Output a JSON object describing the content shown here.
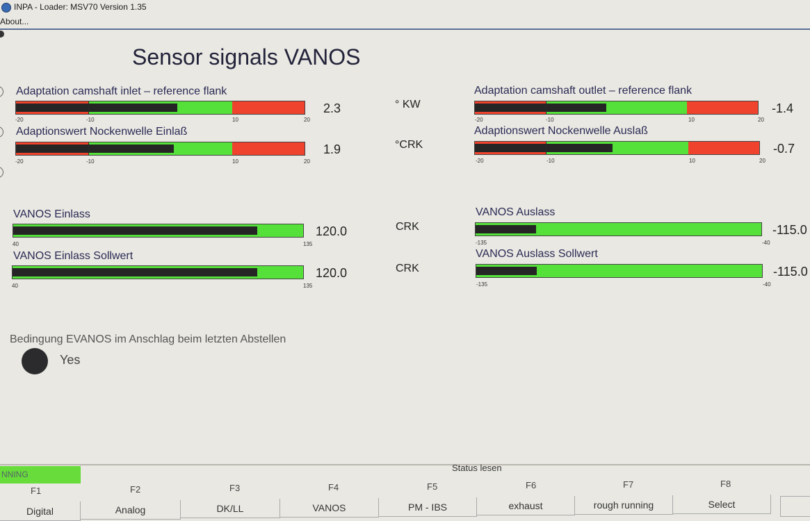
{
  "window": {
    "title": "INPA - Loader:  MSV70 Version 1.35"
  },
  "menu": {
    "about": "About..."
  },
  "page": {
    "title": "Sensor signals VANOS"
  },
  "left": {
    "adapt_inlet": {
      "label": "Adaptation camshaft inlet – reference flank",
      "value": "2.3",
      "fraction": 0.559,
      "scale": [
        "-20",
        "-10",
        "10",
        "20"
      ]
    },
    "adapt_inlet_de": {
      "label": "Adaptionswert Nockenwelle Einlaß",
      "value": "1.9",
      "fraction": 0.546,
      "scale": [
        "-20",
        "-10",
        "10",
        "20"
      ]
    },
    "vanos_inlet": {
      "label": "VANOS Einlass",
      "value": "120.0",
      "fraction": 0.842,
      "scale": [
        "40",
        "135"
      ]
    },
    "vanos_inlet_sp": {
      "label": "VANOS Einlass Sollwert",
      "value": "120.0",
      "fraction": 0.842,
      "scale": [
        "40",
        "135"
      ]
    }
  },
  "right": {
    "adapt_outlet": {
      "label": "Adaptation camshaft outlet – reference flank",
      "value": "-1.4",
      "fraction": 0.465,
      "scale": [
        "-20",
        "-10",
        "10",
        "20"
      ]
    },
    "adapt_outlet_de": {
      "label": "Adaptionswert Nockenwelle Auslaß",
      "value": "-0.7",
      "fraction": 0.483,
      "scale": [
        "-20",
        "-10",
        "10",
        "20"
      ]
    },
    "vanos_outlet": {
      "label": "VANOS Auslass",
      "value": "-115.0",
      "fraction": 0.211,
      "scale": [
        "-135",
        "-40"
      ]
    },
    "vanos_outlet_sp": {
      "label": "VANOS Auslass Sollwert",
      "value": "-115.0",
      "fraction": 0.211,
      "scale": [
        "-135",
        "-40"
      ]
    }
  },
  "units": {
    "u1": "° KW",
    "u2": "°CRK",
    "u3": "CRK",
    "u4": "CRK"
  },
  "condition": {
    "label": "Bedingung EVANOS im Anschlag beim letzten Abstellen",
    "value": "Yes"
  },
  "status": {
    "label": "Status lesen",
    "running": "NNING"
  },
  "fkeys": [
    {
      "id": "F1",
      "label": "Digital"
    },
    {
      "id": "F2",
      "label": "Analog"
    },
    {
      "id": "F3",
      "label": "DK/LL"
    },
    {
      "id": "F4",
      "label": "VANOS"
    },
    {
      "id": "F5",
      "label": "PM - IBS"
    },
    {
      "id": "F6",
      "label": "exhaust"
    },
    {
      "id": "F7",
      "label": "rough running"
    },
    {
      "id": "F8",
      "label": "Select"
    }
  ],
  "colors": {
    "ok_green": "#55e13a",
    "limit_red": "#f0432e",
    "bar_fill": "#252525"
  }
}
